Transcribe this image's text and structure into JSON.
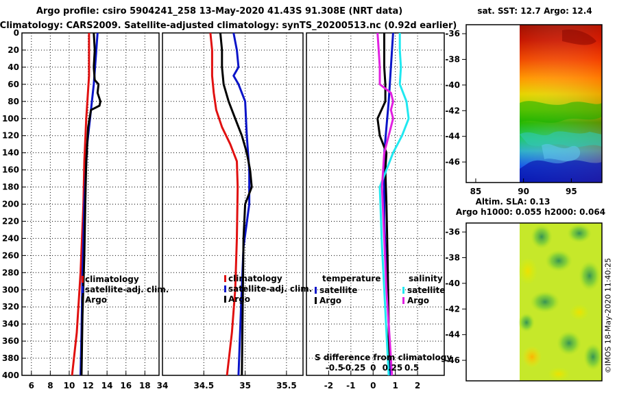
{
  "title_line1": "Argo profile: csiro 5904241_258 13-May-2020 41.43S 91.308E (NRT data)",
  "title_line2": "Climatology: CARS2009. Satellite-adjusted climatology: synTS_20200513.nc (0.92d earlier)",
  "colors": {
    "climatology": "#e01010",
    "satellite": "#0a14c8",
    "argo": "#000000",
    "salinity_satellite": "#20e8f0",
    "salinity_argo": "#e020e0"
  },
  "chart_data": [
    {
      "type": "line",
      "panel": "temperature",
      "ylim": [
        400,
        0
      ],
      "xlim": [
        5,
        19.5
      ],
      "xticks": [
        6,
        8,
        10,
        12,
        14,
        16,
        18
      ],
      "xtick_labels": [
        "6",
        "8",
        "10",
        "12",
        "14",
        "16",
        "18"
      ],
      "yticks": [
        0,
        20,
        40,
        60,
        80,
        100,
        120,
        140,
        160,
        180,
        200,
        220,
        240,
        260,
        280,
        300,
        320,
        340,
        360,
        380,
        400
      ],
      "ytick_labels": [
        "0",
        "20",
        "40",
        "60",
        "80",
        "100",
        "120",
        "140",
        "160",
        "180",
        "200",
        "220",
        "240",
        "260",
        "280",
        "300",
        "320",
        "340",
        "360",
        "380",
        "400"
      ],
      "legend": [
        "climatology",
        "satellite-adj. clim.",
        "Argo"
      ],
      "series": [
        {
          "name": "climatology",
          "color": "#e01010",
          "x": [
            12.1,
            12.1,
            11.8,
            11.6,
            11.5,
            11.2,
            10.8,
            10.3
          ],
          "y": [
            0,
            50,
            100,
            150,
            200,
            280,
            350,
            400
          ]
        },
        {
          "name": "satellite-adj. clim.",
          "color": "#0a14c8",
          "x": [
            13.0,
            12.8,
            12.6,
            12.3,
            11.9,
            11.6,
            11.4,
            11.3,
            11.2
          ],
          "y": [
            0,
            30,
            60,
            90,
            130,
            200,
            280,
            350,
            400
          ]
        },
        {
          "name": "Argo",
          "color": "#000000",
          "x": [
            12.6,
            12.7,
            12.6,
            12.7,
            13.1,
            13.0,
            13.3,
            13.2,
            12.3,
            12.0,
            11.8,
            11.7,
            11.6,
            11.4,
            11.3
          ],
          "y": [
            0,
            20,
            40,
            55,
            60,
            70,
            80,
            85,
            90,
            110,
            150,
            200,
            260,
            330,
            400
          ]
        }
      ]
    },
    {
      "type": "line",
      "panel": "salinity",
      "ylim": [
        400,
        0
      ],
      "xlim": [
        34.0,
        35.7
      ],
      "xticks": [
        34.0,
        34.5,
        35.0,
        35.5
      ],
      "xtick_labels": [
        "34",
        "34.5",
        "35",
        "35.5"
      ],
      "legend": [
        "climatology",
        "satellite-adj. clim.",
        "Argo"
      ],
      "series": [
        {
          "name": "climatology",
          "color": "#e01010",
          "x": [
            34.58,
            34.6,
            34.6,
            34.62,
            34.65,
            34.72,
            34.82,
            34.9,
            34.91,
            34.9,
            34.88,
            34.84,
            34.78
          ],
          "y": [
            0,
            20,
            50,
            70,
            90,
            110,
            130,
            150,
            180,
            240,
            300,
            350,
            400
          ]
        },
        {
          "name": "satellite-adj. clim.",
          "color": "#0a14c8",
          "x": [
            34.86,
            34.9,
            34.92,
            34.86,
            34.92,
            35.0,
            35.02,
            35.05,
            35.05,
            34.98,
            34.95,
            34.92
          ],
          "y": [
            0,
            20,
            40,
            50,
            60,
            80,
            120,
            160,
            200,
            250,
            320,
            400
          ]
        },
        {
          "name": "Argo",
          "color": "#000000",
          "x": [
            34.7,
            34.72,
            34.72,
            34.74,
            34.8,
            34.88,
            34.92,
            34.96,
            35.02,
            35.06,
            35.08,
            35.0,
            34.98,
            34.97,
            34.96
          ],
          "y": [
            0,
            20,
            40,
            60,
            80,
            100,
            110,
            120,
            140,
            160,
            180,
            200,
            240,
            320,
            400
          ]
        }
      ]
    },
    {
      "type": "line",
      "panel": "difference",
      "ylim": [
        400,
        0
      ],
      "xlim": [
        -3.0,
        3.2
      ],
      "xticks": [
        -2,
        -1,
        0,
        1,
        2
      ],
      "xtick_labels": [
        "-2",
        "-1",
        "0",
        "1",
        "2"
      ],
      "secondary_axis_label": "S difference from climatology",
      "secondary_xticks": [
        -0.5,
        -0.25,
        0,
        0.25,
        0.5
      ],
      "secondary_xtick_labels": [
        "-0.5",
        "-0.25",
        "0",
        "0.25",
        "0.5"
      ],
      "legend_temperature_title": "temperature",
      "legend_salinity_title": "salinity",
      "legend_temperature": [
        "satellite",
        "Argo"
      ],
      "legend_salinity": [
        "satellite",
        "Argo"
      ],
      "series": [
        {
          "name": "temperature satellite",
          "color": "#0a14c8",
          "x": [
            0.9,
            0.8,
            0.7,
            0.6,
            0.5,
            0.5,
            0.5,
            0.6,
            0.7,
            0.75
          ],
          "y": [
            0,
            40,
            80,
            110,
            140,
            180,
            220,
            280,
            340,
            400
          ]
        },
        {
          "name": "temperature Argo",
          "color": "#000000",
          "x": [
            0.5,
            0.5,
            0.5,
            0.55,
            0.55,
            0.2,
            0.3,
            0.6,
            0.55,
            0.6,
            0.65,
            0.7,
            0.7
          ],
          "y": [
            0,
            20,
            40,
            60,
            80,
            100,
            120,
            140,
            160,
            200,
            260,
            340,
            400
          ]
        },
        {
          "name": "salinity satellite",
          "color": "#20e8f0",
          "x": [
            1.2,
            1.2,
            1.25,
            1.2,
            1.5,
            1.6,
            1.3,
            0.9,
            0.6,
            0.3,
            0.4,
            0.5,
            0.6,
            0.7
          ],
          "y": [
            0,
            20,
            40,
            60,
            80,
            100,
            120,
            140,
            160,
            180,
            250,
            300,
            350,
            400
          ]
        },
        {
          "name": "salinity Argo",
          "color": "#e020e0",
          "x": [
            0.2,
            0.25,
            0.3,
            0.3,
            0.8,
            0.9,
            0.8,
            0.9,
            0.8,
            0.5,
            0.4,
            0.5,
            0.6,
            0.75,
            0.85
          ],
          "y": [
            0,
            20,
            40,
            60,
            70,
            80,
            90,
            100,
            110,
            140,
            180,
            240,
            300,
            360,
            400
          ]
        }
      ]
    }
  ],
  "sst_map": {
    "title": "sat. SST: 12.7 Argo: 12.4",
    "lat_ticks": [
      -36,
      -38,
      -40,
      -42,
      -44,
      -46
    ],
    "lon_ticks": [
      85,
      90,
      95
    ]
  },
  "sla_map": {
    "title_line1": "Altim. SLA: 0.13",
    "title_line2": "Argo h1000: 0.055 h2000: 0.064",
    "lat_ticks": [
      -36,
      -38,
      -40,
      -42,
      -44,
      -46
    ]
  },
  "stamp": "©IMOS 18-May-2020 11:40:25"
}
